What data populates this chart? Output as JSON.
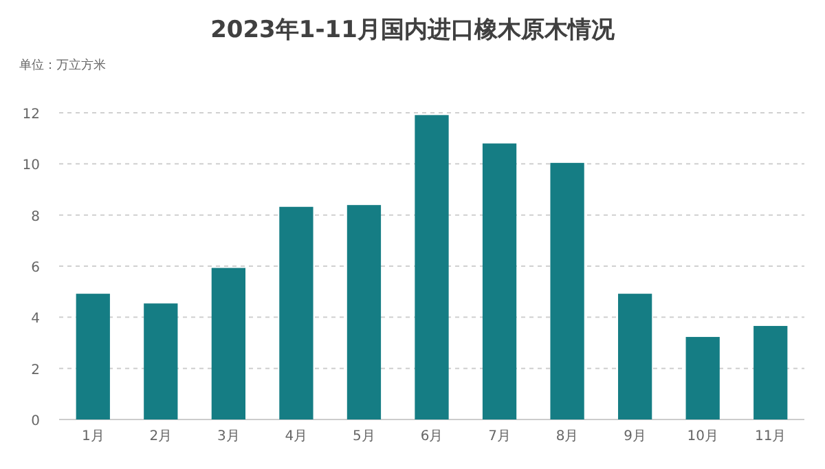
{
  "chart_data": {
    "type": "bar",
    "title": "2023年1-11月国内进口橡木原木情况",
    "ylabel": "单位：万立方米",
    "categories": [
      "1月",
      "2月",
      "3月",
      "4月",
      "5月",
      "6月",
      "7月",
      "8月",
      "9月",
      "10月",
      "11月"
    ],
    "values": [
      4.92,
      4.54,
      5.93,
      8.32,
      8.39,
      11.91,
      10.8,
      10.04,
      4.92,
      3.23,
      3.66
    ],
    "color": "#157d84",
    "ylim": [
      0,
      12
    ],
    "yticks": [
      0,
      2,
      4,
      6,
      8,
      10,
      12
    ],
    "grid": "y"
  }
}
